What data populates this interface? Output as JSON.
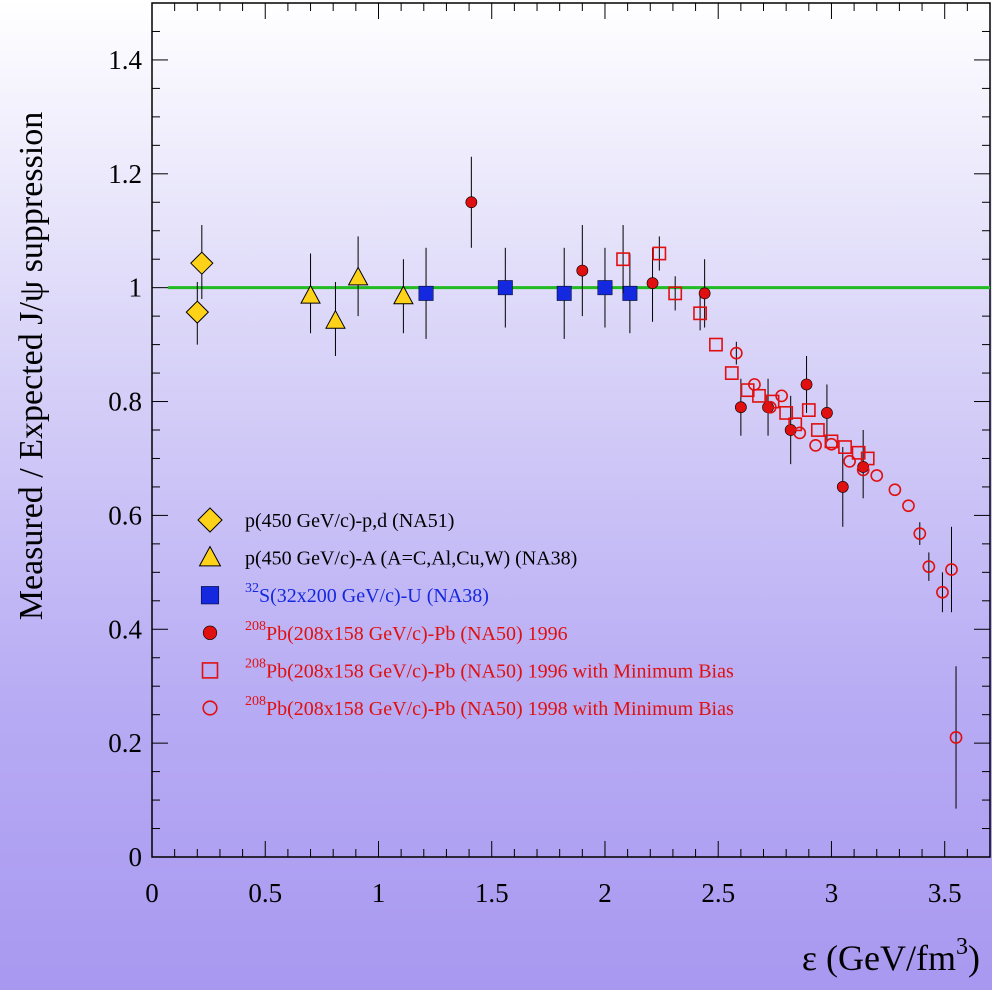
{
  "chart_data": {
    "type": "scatter",
    "title": "",
    "xlabel": "ε  (GeV/fm",
    "xlabel_sup": "3",
    "xlabel_close": ")",
    "ylabel": "Measured / Expected  J/ψ suppression",
    "xlim": [
      0,
      3.7
    ],
    "ylim": [
      0,
      1.5
    ],
    "xticks": [
      0,
      0.5,
      1,
      1.5,
      2,
      2.5,
      3,
      3.5
    ],
    "xtick_labels": [
      "0",
      "0.5",
      "1",
      "1.5",
      "2",
      "2.5",
      "3",
      "3.5"
    ],
    "yticks": [
      0,
      0.2,
      0.4,
      0.6,
      0.8,
      1,
      1.2,
      1.4
    ],
    "ytick_labels": [
      "0",
      "0.2",
      "0.4",
      "0.6",
      "0.8",
      "1",
      "1.2",
      "1.4"
    ],
    "grid": false,
    "legend_position": "lower-left",
    "reference_line": {
      "y": 1.0,
      "color": "#22bb22"
    },
    "series": [
      {
        "name": "p(450 GeV/c)-p,d (NA51)",
        "sup": "",
        "marker": "diamond",
        "fill": "#ffd21a",
        "stroke": "#000000",
        "text_color": "#000000",
        "points": [
          {
            "x": 0.2,
            "y": 0.957,
            "lo": 0.9,
            "hi": 1.01
          },
          {
            "x": 0.22,
            "y": 1.043,
            "lo": 0.98,
            "hi": 1.11
          }
        ]
      },
      {
        "name": "p(450 GeV/c)-A (A=C,Al,Cu,W) (NA38)",
        "sup": "",
        "marker": "triangle",
        "fill": "#ffd21a",
        "stroke": "#000000",
        "text_color": "#000000",
        "points": [
          {
            "x": 0.7,
            "y": 0.986,
            "lo": 0.92,
            "hi": 1.06
          },
          {
            "x": 0.81,
            "y": 0.942,
            "lo": 0.88,
            "hi": 1.01
          },
          {
            "x": 0.91,
            "y": 1.018,
            "lo": 0.95,
            "hi": 1.09
          },
          {
            "x": 1.11,
            "y": 0.985,
            "lo": 0.92,
            "hi": 1.05
          }
        ]
      },
      {
        "name": "S(32x200 GeV/c)-U (NA38)",
        "sup": "32",
        "marker": "square",
        "fill": "#1428e0",
        "stroke": "#000000",
        "text_color": "#1428e0",
        "points": [
          {
            "x": 1.21,
            "y": 0.99,
            "lo": 0.91,
            "hi": 1.07
          },
          {
            "x": 1.56,
            "y": 1.0,
            "lo": 0.93,
            "hi": 1.07
          },
          {
            "x": 1.82,
            "y": 0.99,
            "lo": 0.91,
            "hi": 1.07
          },
          {
            "x": 2.0,
            "y": 1.0,
            "lo": 0.93,
            "hi": 1.07
          },
          {
            "x": 2.11,
            "y": 0.99,
            "lo": 0.92,
            "hi": 1.06
          }
        ]
      },
      {
        "name": "Pb(208x158 GeV/c)-Pb (NA50) 1996",
        "sup": "208",
        "marker": "circle-filled",
        "fill": "#e01010",
        "stroke": "#000000",
        "text_color": "#e01010",
        "points": [
          {
            "x": 1.41,
            "y": 1.15,
            "lo": 1.07,
            "hi": 1.23
          },
          {
            "x": 1.9,
            "y": 1.03,
            "lo": 0.95,
            "hi": 1.11
          },
          {
            "x": 2.21,
            "y": 1.008,
            "lo": 0.94,
            "hi": 1.07
          },
          {
            "x": 2.44,
            "y": 0.99,
            "lo": 0.93,
            "hi": 1.05
          },
          {
            "x": 2.6,
            "y": 0.79,
            "lo": 0.74,
            "hi": 0.84
          },
          {
            "x": 2.72,
            "y": 0.79,
            "lo": 0.74,
            "hi": 0.84
          },
          {
            "x": 2.82,
            "y": 0.75,
            "lo": 0.69,
            "hi": 0.81
          },
          {
            "x": 2.89,
            "y": 0.83,
            "lo": 0.78,
            "hi": 0.88
          },
          {
            "x": 2.98,
            "y": 0.78,
            "lo": 0.73,
            "hi": 0.83
          },
          {
            "x": 3.05,
            "y": 0.65,
            "lo": 0.58,
            "hi": 0.72
          },
          {
            "x": 3.14,
            "y": 0.685,
            "lo": 0.63,
            "hi": 0.75
          }
        ]
      },
      {
        "name": "Pb(208x158 GeV/c)-Pb (NA50) 1996 with Minimum Bias",
        "sup": "208",
        "marker": "square-open",
        "fill": "none",
        "stroke": "#e01010",
        "text_color": "#e01010",
        "points": [
          {
            "x": 2.08,
            "y": 1.05,
            "lo": 0.99,
            "hi": 1.11
          },
          {
            "x": 2.24,
            "y": 1.06,
            "lo": 1.03,
            "hi": 1.09
          },
          {
            "x": 2.31,
            "y": 0.99,
            "lo": 0.96,
            "hi": 1.02
          },
          {
            "x": 2.42,
            "y": 0.955,
            "lo": 0.925,
            "hi": 0.985
          },
          {
            "x": 2.49,
            "y": 0.9
          },
          {
            "x": 2.56,
            "y": 0.85
          },
          {
            "x": 2.63,
            "y": 0.82
          },
          {
            "x": 2.68,
            "y": 0.81
          },
          {
            "x": 2.74,
            "y": 0.8
          },
          {
            "x": 2.8,
            "y": 0.78
          },
          {
            "x": 2.84,
            "y": 0.76
          },
          {
            "x": 2.9,
            "y": 0.785
          },
          {
            "x": 2.94,
            "y": 0.75
          },
          {
            "x": 3.0,
            "y": 0.73
          },
          {
            "x": 3.06,
            "y": 0.72
          },
          {
            "x": 3.12,
            "y": 0.71
          },
          {
            "x": 3.16,
            "y": 0.7
          }
        ]
      },
      {
        "name": "Pb(208x158 GeV/c)-Pb (NA50) 1998 with Minimum Bias",
        "sup": "208",
        "marker": "circle-open",
        "fill": "none",
        "stroke": "#e01010",
        "text_color": "#e01010",
        "points": [
          {
            "x": 2.58,
            "y": 0.885,
            "lo": 0.865,
            "hi": 0.905
          },
          {
            "x": 2.66,
            "y": 0.83
          },
          {
            "x": 2.73,
            "y": 0.79
          },
          {
            "x": 2.78,
            "y": 0.81
          },
          {
            "x": 2.86,
            "y": 0.745
          },
          {
            "x": 2.93,
            "y": 0.723
          },
          {
            "x": 3.0,
            "y": 0.725
          },
          {
            "x": 3.08,
            "y": 0.695
          },
          {
            "x": 3.14,
            "y": 0.68
          },
          {
            "x": 3.2,
            "y": 0.67
          },
          {
            "x": 3.28,
            "y": 0.645
          },
          {
            "x": 3.34,
            "y": 0.617
          },
          {
            "x": 3.39,
            "y": 0.568,
            "lo": 0.548,
            "hi": 0.588
          },
          {
            "x": 3.43,
            "y": 0.51,
            "lo": 0.485,
            "hi": 0.535
          },
          {
            "x": 3.49,
            "y": 0.465,
            "lo": 0.43,
            "hi": 0.5
          },
          {
            "x": 3.53,
            "y": 0.505,
            "lo": 0.43,
            "hi": 0.58
          },
          {
            "x": 3.55,
            "y": 0.21,
            "lo": 0.085,
            "hi": 0.335
          }
        ]
      }
    ]
  }
}
